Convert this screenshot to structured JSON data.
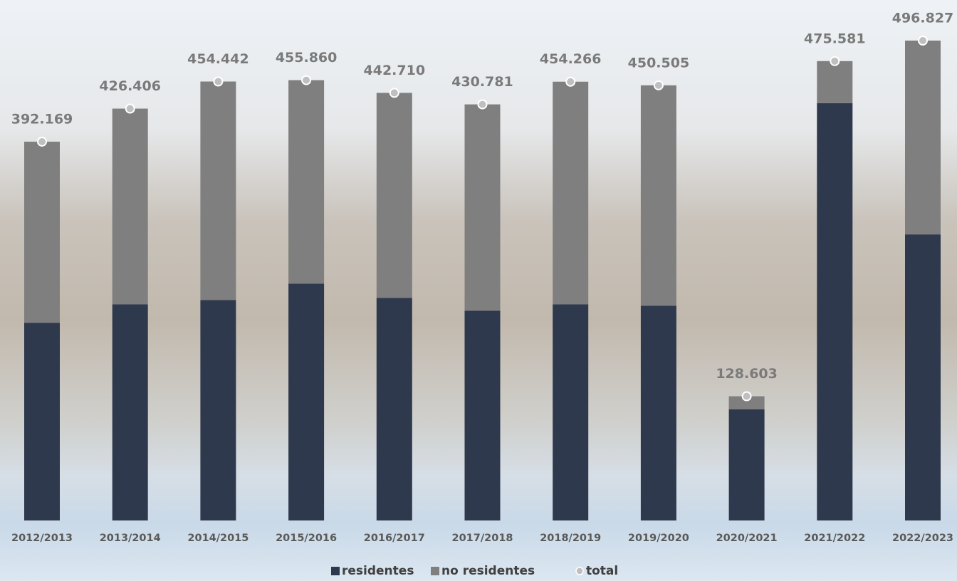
{
  "chart_data": {
    "type": "bar",
    "stacked": true,
    "categories": [
      "2012/2013",
      "2013/2014",
      "2014/2015",
      "2015/2016",
      "2016/2017",
      "2017/2018",
      "2018/2019",
      "2019/2020",
      "2020/2021",
      "2021/2022",
      "2022/2023"
    ],
    "series": [
      {
        "name": "residentes",
        "color": "#2e394d",
        "values": [
          204600,
          223800,
          228200,
          245200,
          230400,
          217100,
          223800,
          222300,
          115200,
          432100,
          296200
        ]
      },
      {
        "name": "no residentes",
        "color": "#7f7f7f",
        "values": [
          187569,
          202606,
          226242,
          210660,
          212310,
          213681,
          230466,
          228205,
          13403,
          43481,
          200627
        ]
      },
      {
        "name": "total",
        "color": "#bfbfbf",
        "marker": "circle",
        "values": [
          392169,
          426406,
          454442,
          455860,
          442710,
          430781,
          454266,
          450505,
          128603,
          475581,
          496827
        ],
        "value_labels": [
          "392.169",
          "426.406",
          "454.442",
          "455.860",
          "442.710",
          "430.781",
          "454.266",
          "450.505",
          "128.603",
          "475.581",
          "496.827"
        ]
      }
    ],
    "legend": "bottom"
  }
}
